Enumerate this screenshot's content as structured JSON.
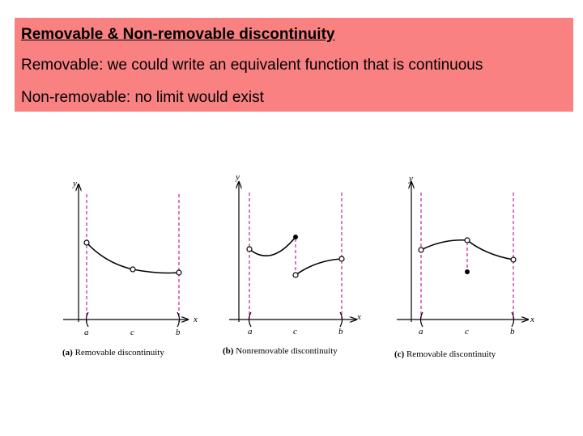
{
  "header": {
    "title": "Removable & Non-removable discontinuity",
    "lines": [
      "Removable:  we could write an equivalent function that is continuous",
      "Non-removable:  no limit would exist"
    ]
  },
  "figures": [
    {
      "y_label": "y",
      "x_label": "x",
      "points": [
        "a",
        "c",
        "b"
      ],
      "tag": "(a)",
      "caption": "Removable discontinuity"
    },
    {
      "y_label": "y",
      "x_label": "x",
      "points": [
        "a",
        "c",
        "b"
      ],
      "tag": "(b)",
      "caption": "Nonremovable discontinuity"
    },
    {
      "y_label": "y",
      "x_label": "x",
      "points": [
        "a",
        "c",
        "b"
      ],
      "tag": "(c)",
      "caption": "Removable discontinuity"
    }
  ]
}
